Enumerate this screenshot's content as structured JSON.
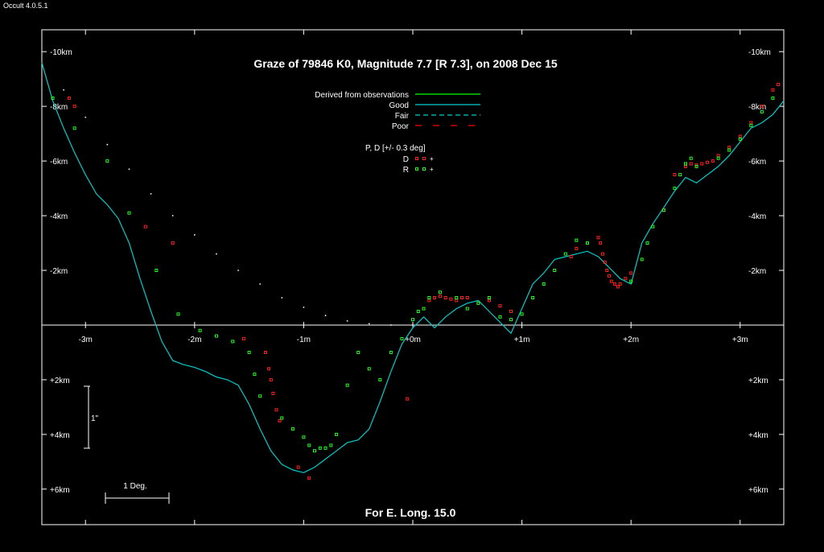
{
  "app": {
    "version": "Occult 4.0.5.1"
  },
  "chart_data": {
    "type": "scatter",
    "title": "Graze of  79846 K0,  Magnitude 7.7 [R 7.3],  on 2008 Dec 15",
    "footer": "For E. Long. 15.0",
    "xlabel": "",
    "ylabel": "",
    "x_unit": "minutes of time",
    "y_unit": "km",
    "xlim": [
      -3.4,
      3.4
    ],
    "ylim": [
      -10.8,
      7.3
    ],
    "x_ticks": [
      {
        "v": -3,
        "label": "-3m"
      },
      {
        "v": -2,
        "label": "-2m"
      },
      {
        "v": -1,
        "label": "-1m"
      },
      {
        "v": 0,
        "label": "+0m"
      },
      {
        "v": 1,
        "label": "+1m"
      },
      {
        "v": 2,
        "label": "+2m"
      },
      {
        "v": 3,
        "label": "+3m"
      }
    ],
    "y_ticks": [
      {
        "v": -10,
        "label": "-10km"
      },
      {
        "v": -8,
        "label": "-8km"
      },
      {
        "v": -6,
        "label": "-6km"
      },
      {
        "v": -4,
        "label": "-4km"
      },
      {
        "v": -2,
        "label": "-2km"
      },
      {
        "v": 2,
        "label": "+2km"
      },
      {
        "v": 4,
        "label": "+4km"
      },
      {
        "v": 6,
        "label": "+6km"
      }
    ],
    "legend": {
      "placement": "top-center",
      "lines": [
        {
          "label": "Derived from observations",
          "color": "#00ff00",
          "dash": ""
        },
        {
          "label": "Good",
          "color": "#00cccc",
          "dash": ""
        },
        {
          "label": "Fair",
          "color": "#00cccc",
          "dash": "6,4"
        },
        {
          "label": "Poor",
          "color": "#ff0000",
          "dash": "8,14"
        }
      ],
      "pd_header": "P, D [+/- 0.3 deg]",
      "markers": [
        {
          "label": "D",
          "color": "#ff2020"
        },
        {
          "label": "R",
          "color": "#20ff20"
        }
      ]
    },
    "scale_bars": {
      "vertical_label": "1\"",
      "horizontal_label": "1 Deg."
    },
    "colors": {
      "profile": "#00cccc",
      "D": "#ff2020",
      "R": "#20ff20",
      "center_track": "#ffffff"
    },
    "limb_profile": {
      "x": [
        -3.4,
        -3.3,
        -3.2,
        -3.1,
        -3.0,
        -2.9,
        -2.8,
        -2.7,
        -2.6,
        -2.5,
        -2.4,
        -2.3,
        -2.2,
        -2.1,
        -2.0,
        -1.9,
        -1.8,
        -1.7,
        -1.6,
        -1.5,
        -1.4,
        -1.3,
        -1.2,
        -1.1,
        -1.0,
        -0.9,
        -0.8,
        -0.7,
        -0.6,
        -0.5,
        -0.4,
        -0.3,
        -0.2,
        -0.1,
        0.0,
        0.1,
        0.2,
        0.3,
        0.4,
        0.5,
        0.6,
        0.7,
        0.8,
        0.9,
        1.0,
        1.1,
        1.2,
        1.3,
        1.4,
        1.5,
        1.6,
        1.7,
        1.8,
        1.9,
        2.0,
        2.1,
        2.2,
        2.3,
        2.4,
        2.5,
        2.6,
        2.7,
        2.8,
        2.9,
        3.0,
        3.1,
        3.2,
        3.3,
        3.4
      ],
      "y": [
        -9.6,
        -8.2,
        -7.2,
        -6.3,
        -5.5,
        -4.8,
        -4.4,
        -3.9,
        -3.0,
        -1.7,
        -0.5,
        0.6,
        1.3,
        1.45,
        1.55,
        1.7,
        1.9,
        2.0,
        2.2,
        2.9,
        3.8,
        4.6,
        5.1,
        5.3,
        5.4,
        5.2,
        4.9,
        4.6,
        4.3,
        4.2,
        3.8,
        2.8,
        1.7,
        0.7,
        0.1,
        -0.3,
        0.1,
        -0.3,
        -0.6,
        -0.8,
        -0.9,
        -0.5,
        -0.1,
        0.3,
        -0.6,
        -1.5,
        -1.9,
        -2.4,
        -2.5,
        -2.6,
        -2.7,
        -2.5,
        -2.1,
        -1.7,
        -1.5,
        -3.0,
        -3.7,
        -4.3,
        -4.9,
        -5.4,
        -5.2,
        -5.5,
        -5.8,
        -6.2,
        -6.7,
        -7.2,
        -7.4,
        -7.7,
        -8.2
      ]
    },
    "center_track": {
      "x": [
        -3.2,
        -3.0,
        -2.8,
        -2.6,
        -2.4,
        -2.2,
        -2.0,
        -1.8,
        -1.6,
        -1.4,
        -1.2,
        -1.0,
        -0.8,
        -0.6,
        -0.4,
        -0.2,
        0.0
      ],
      "y": [
        -8.6,
        -7.6,
        -6.6,
        -5.7,
        -4.8,
        -4.0,
        -3.3,
        -2.6,
        -2.0,
        -1.5,
        -1.0,
        -0.65,
        -0.35,
        -0.15,
        -0.05,
        0.0,
        0.0
      ]
    },
    "series": [
      {
        "name": "D",
        "color": "#ff2020",
        "x": [
          -3.15,
          -3.1,
          -2.45,
          -2.2,
          -1.55,
          -1.35,
          -1.32,
          -1.3,
          -1.28,
          -1.25,
          -1.22,
          -1.05,
          -0.95,
          -0.05,
          0.15,
          0.2,
          0.25,
          0.3,
          0.35,
          0.4,
          0.45,
          0.5,
          0.6,
          0.7,
          0.8,
          0.9,
          1.45,
          1.5,
          1.7,
          1.72,
          1.74,
          1.76,
          1.78,
          1.8,
          1.82,
          1.85,
          1.88,
          1.9,
          1.95,
          2.0,
          2.3,
          2.4,
          2.5,
          2.55,
          2.6,
          2.65,
          2.7,
          2.75,
          2.8,
          2.9,
          3.0,
          3.1,
          3.2,
          3.3,
          3.35
        ],
        "y": [
          -8.3,
          -8.0,
          -3.6,
          -3.0,
          0.5,
          1.0,
          1.6,
          2.0,
          2.5,
          3.1,
          3.5,
          5.2,
          5.6,
          2.7,
          -0.9,
          -1.0,
          -1.05,
          -1.0,
          -0.95,
          -0.9,
          -1.0,
          -1.0,
          -0.8,
          -0.9,
          -0.7,
          -0.5,
          -2.5,
          -2.8,
          -3.2,
          -3.0,
          -2.6,
          -2.3,
          -2.0,
          -1.8,
          -1.6,
          -1.5,
          -1.4,
          -1.5,
          -1.7,
          -1.9,
          -4.2,
          -5.5,
          -5.8,
          -5.9,
          -5.85,
          -5.9,
          -5.95,
          -6.0,
          -6.2,
          -6.5,
          -6.9,
          -7.4,
          -8.0,
          -8.6,
          -8.8
        ]
      },
      {
        "name": "R",
        "color": "#20ff20",
        "x": [
          -3.3,
          -3.1,
          -2.8,
          -2.6,
          -2.35,
          -2.15,
          -1.95,
          -1.8,
          -1.65,
          -1.5,
          -1.45,
          -1.4,
          -1.2,
          -1.1,
          -1.0,
          -0.95,
          -0.9,
          -0.85,
          -0.8,
          -0.75,
          -0.7,
          -0.6,
          -0.5,
          -0.4,
          -0.3,
          -0.2,
          -0.1,
          0.0,
          0.05,
          0.1,
          0.15,
          0.25,
          0.4,
          0.5,
          0.6,
          0.7,
          0.8,
          0.9,
          1.0,
          1.1,
          1.2,
          1.3,
          1.4,
          1.5,
          1.6,
          2.0,
          2.1,
          2.15,
          2.2,
          2.3,
          2.4,
          2.45,
          2.5,
          2.55,
          2.6,
          2.8,
          2.9,
          3.0,
          3.1,
          3.2,
          3.3
        ],
        "y": [
          -8.3,
          -7.2,
          -6.0,
          -4.1,
          -2.0,
          -0.4,
          0.2,
          0.4,
          0.6,
          1.0,
          1.8,
          2.6,
          3.4,
          3.8,
          4.1,
          4.4,
          4.6,
          4.5,
          4.5,
          4.4,
          4.0,
          2.2,
          1.0,
          1.6,
          2.0,
          1.0,
          0.5,
          -0.2,
          -0.5,
          -0.6,
          -1.0,
          -1.2,
          -1.0,
          -0.6,
          -0.8,
          -1.0,
          -0.3,
          -0.2,
          -0.4,
          -1.0,
          -1.5,
          -2.0,
          -2.6,
          -3.1,
          -3.0,
          -1.6,
          -2.4,
          -3.0,
          -3.6,
          -4.2,
          -5.0,
          -5.5,
          -5.9,
          -6.1,
          -5.8,
          -6.1,
          -6.4,
          -6.8,
          -7.3,
          -7.8,
          -8.3
        ]
      }
    ]
  }
}
